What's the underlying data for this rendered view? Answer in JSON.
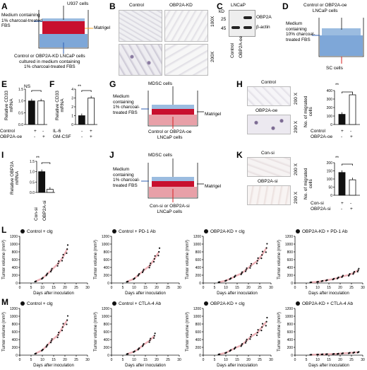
{
  "panels": {
    "A": {
      "label": "A",
      "cells_top": "U937 cells",
      "medium": "Medium containing\n1% charcoal-treated\nFBS",
      "matrigel": "Matrigel",
      "bottom": "Control or OBP2A-KD LNCaP cells\ncultured in medium containing\n1% charcoal-treated FBS"
    },
    "B": {
      "label": "B",
      "col1": "Control",
      "col2": "OBP2A-KD",
      "row1": "100X",
      "row2": "200X"
    },
    "C": {
      "label": "C",
      "title": "LNCaP",
      "kd": "kD",
      "m1": "25",
      "m2": "45",
      "band1": "OBP2A",
      "band2": "β-actin",
      "x1": "Control",
      "x2": "OBP2A-oe"
    },
    "D": {
      "label": "D",
      "top": "Control or OBP2A-oe\nLNCaP cells",
      "medium": "Medium\ncontaining\n10% charcoal-\ntreated FBS",
      "bottom": "SC cells"
    },
    "E": {
      "label": "E",
      "ylabel": "Relative CD33\nmRNA",
      "ns": "NS",
      "row1": "Control",
      "row2": "OBP2A-oe",
      "s1": "+",
      "s2": "-",
      "s3": "-",
      "s4": "+"
    },
    "F": {
      "label": "F",
      "ylabel": "Relative CD33\nmRNA",
      "sig": "**",
      "row1": "IL-6",
      "row2": "GM-CSF",
      "s1": "-",
      "s2": "+",
      "s3": "-",
      "s4": "+"
    },
    "G": {
      "label": "G",
      "top": "MDSC cells",
      "medium": "Medium\ncontaining\n1% charcoal-\ntreated FBS",
      "matrigel": "Matrigel",
      "bottom": "Control or OBP2A-oe\nLNCaP cells"
    },
    "H": {
      "label": "H",
      "img1": "Control",
      "img2": "OBP2A-oe",
      "mag1": "200 X",
      "mag2": "200 X",
      "ylabel": "No. of migrated\ncells",
      "sig": "**",
      "row1": "Control",
      "row2": "OBP2A-oe",
      "s1": "+",
      "s2": "-",
      "s3": "-",
      "s4": "+"
    },
    "I": {
      "label": "I",
      "ylabel": "Relative OBP2A\nmRNA",
      "sig": "**",
      "x1": "Con-si",
      "x2": "OBP2A-si"
    },
    "J": {
      "label": "J",
      "top": "MDSC cells",
      "medium": "Medium\ncontaining\n1% charcoal-\ntreated FBS",
      "matrigel": "Matrigel",
      "bottom": "Con-si or OBP2A-si\nLNCaP cells"
    },
    "K": {
      "label": "K",
      "img1": "Con-si",
      "img2": "OBP2A-si",
      "mag1": "200 X",
      "mag2": "200 X",
      "ylabel": "No. of migrated\ncells",
      "sig": "**",
      "row1": "Con-si",
      "row2": "OBP2A-si",
      "s1": "+",
      "s2": "-",
      "s3": "-",
      "s4": "+"
    },
    "L": {
      "label": "L"
    },
    "M": {
      "label": "M"
    }
  },
  "chart_data": [
    {
      "id": "E",
      "type": "bar",
      "categories": [
        "Control",
        "OBP2A-oe"
      ],
      "values": [
        1.0,
        1.0
      ],
      "ylim": [
        0,
        1.5
      ],
      "yticks": [
        "0.0",
        "0.5",
        "1.0",
        "1.5"
      ],
      "ylabel": "Relative CD33 mRNA",
      "fills": [
        "#111111",
        "#ffffff"
      ]
    },
    {
      "id": "F",
      "type": "bar",
      "categories": [
        "Control",
        "IL-6 + GM-CSF"
      ],
      "values": [
        1.0,
        3.0
      ],
      "ylim": [
        0,
        4
      ],
      "yticks": [
        "0",
        "1",
        "2",
        "3",
        "4"
      ],
      "ylabel": "Relative CD33 mRNA",
      "fills": [
        "#111111",
        "#ffffff"
      ]
    },
    {
      "id": "H",
      "type": "bar",
      "categories": [
        "Control",
        "OBP2A-oe"
      ],
      "values": [
        120,
        350
      ],
      "ylim": [
        0,
        400
      ],
      "yticks": [
        "0",
        "100",
        "200",
        "300",
        "400"
      ],
      "ylabel": "No. of migrated cells",
      "fills": [
        "#111111",
        "#ffffff"
      ]
    },
    {
      "id": "I",
      "type": "bar",
      "categories": [
        "Con-si",
        "OBP2A-si"
      ],
      "values": [
        1.0,
        0.15
      ],
      "ylim": [
        0,
        1.5
      ],
      "yticks": [
        "0.0",
        "0.5",
        "1.0",
        "1.5"
      ],
      "ylabel": "Relative OBP2A mRNA",
      "fills": [
        "#111111",
        "#ffffff"
      ]
    },
    {
      "id": "K",
      "type": "bar",
      "categories": [
        "Con-si",
        "OBP2A-si"
      ],
      "values": [
        140,
        95
      ],
      "ylim": [
        0,
        200
      ],
      "yticks": [
        "0",
        "50",
        "100",
        "150",
        "200"
      ],
      "ylabel": "No. of migrated cells",
      "fills": [
        "#111111",
        "#ffffff"
      ]
    },
    {
      "id": "L1",
      "type": "scatter",
      "title": "Control + clg",
      "days": [
        7,
        10,
        12,
        14,
        17,
        19,
        21
      ],
      "y": [
        40,
        120,
        220,
        330,
        500,
        650,
        870
      ],
      "xlim": [
        0,
        30
      ],
      "ylim": [
        0,
        1200
      ],
      "xlabel": "Days after inoculation",
      "ylabel": "Tumor volume (mm³)"
    },
    {
      "id": "L2",
      "type": "scatter",
      "title": "Control + PD-1 Ab",
      "days": [
        7,
        10,
        12,
        14,
        17,
        19,
        21
      ],
      "y": [
        35,
        110,
        210,
        310,
        450,
        620,
        800
      ],
      "xlim": [
        0,
        30
      ],
      "ylim": [
        0,
        1200
      ],
      "xlabel": "Days after inoculation",
      "ylabel": "Tumor volume (mm³)"
    },
    {
      "id": "L3",
      "type": "scatter",
      "title": "OBP2A-KD + clg",
      "days": [
        7,
        10,
        12,
        14,
        17,
        19,
        21,
        24,
        26,
        28
      ],
      "y": [
        20,
        60,
        110,
        170,
        250,
        340,
        440,
        570,
        720,
        900
      ],
      "xlim": [
        0,
        30
      ],
      "ylim": [
        0,
        1200
      ],
      "xlabel": "Days after inoculation",
      "ylabel": "Tumor volume (mm³)"
    },
    {
      "id": "L4",
      "type": "scatter",
      "title": "OBP2A-KD + PD-1 Ab",
      "days": [
        7,
        10,
        12,
        14,
        17,
        19,
        21,
        24,
        26,
        28
      ],
      "y": [
        15,
        30,
        50,
        70,
        100,
        130,
        170,
        210,
        260,
        330
      ],
      "xlim": [
        0,
        30
      ],
      "ylim": [
        0,
        1200
      ],
      "xlabel": "Days after inoculation",
      "ylabel": "Tumor volume (mm³)"
    },
    {
      "id": "M1",
      "type": "scatter",
      "title": "Control + clg",
      "days": [
        7,
        10,
        12,
        14,
        17,
        19,
        21
      ],
      "y": [
        40,
        130,
        240,
        370,
        520,
        720,
        900
      ],
      "xlim": [
        0,
        30
      ],
      "ylim": [
        0,
        1200
      ],
      "xlabel": "Days after inoculation",
      "ylabel": "Tumor volume (mm³)"
    },
    {
      "id": "M2",
      "type": "scatter",
      "title": "Control + CTLA-4 Ab",
      "days": [
        7,
        10,
        12,
        14,
        17,
        19
      ],
      "y": [
        30,
        90,
        160,
        260,
        380,
        500
      ],
      "xlim": [
        0,
        30
      ],
      "ylim": [
        0,
        1200
      ],
      "xlabel": "Days after inoculation",
      "ylabel": "Tumor volume (mm³)"
    },
    {
      "id": "M3",
      "type": "scatter",
      "title": "OBP2A-KD + clg",
      "days": [
        7,
        10,
        12,
        14,
        17,
        19,
        21,
        24,
        26,
        28
      ],
      "y": [
        20,
        60,
        120,
        180,
        260,
        360,
        470,
        580,
        720,
        860
      ],
      "xlim": [
        0,
        30
      ],
      "ylim": [
        0,
        1200
      ],
      "xlabel": "Days after inoculation",
      "ylabel": "Tumor volume (mm³)"
    },
    {
      "id": "M4",
      "type": "scatter",
      "title": "OBP2A-KD + CTLA-4 Ab",
      "days": [
        7,
        10,
        12,
        14,
        17,
        19,
        21,
        24,
        26,
        28
      ],
      "y": [
        10,
        15,
        20,
        25,
        30,
        35,
        45,
        55,
        65,
        75
      ],
      "xlim": [
        0,
        30
      ],
      "ylim": [
        0,
        1200
      ],
      "xlabel": "Days after inoculation",
      "ylabel": "Tumor volume (mm³)"
    }
  ],
  "colors": {
    "matrigel": "#c8102e",
    "medium": "#7ea7d8",
    "arrow_red": "#d62020",
    "arrow_blue": "#2f5fb3",
    "arrow_orange": "#f5a623",
    "dots": "#111111"
  }
}
